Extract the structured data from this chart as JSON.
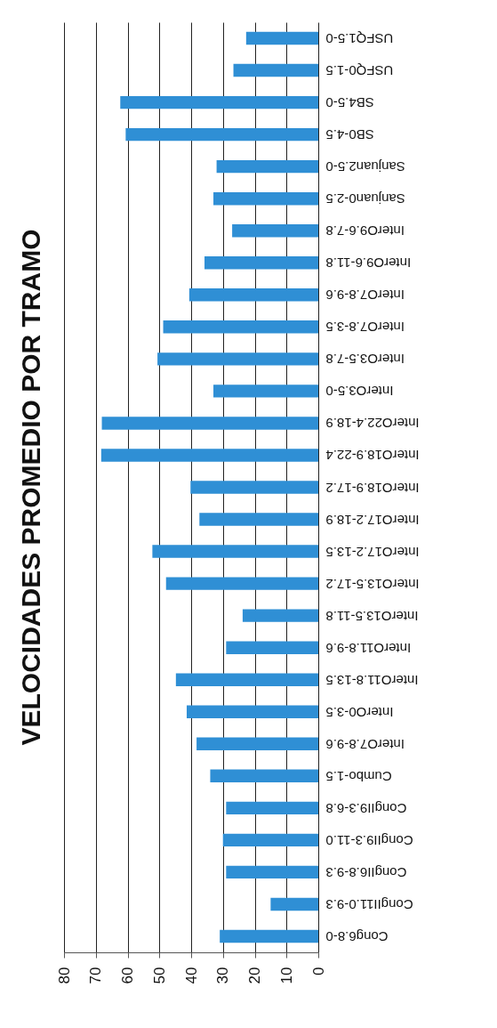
{
  "chart_data": {
    "type": "bar",
    "orientation": "horizontal",
    "title": "VELOCIDADES PROMEDIO POR TRAMO",
    "categories": [
      "USFQ1.5-0",
      "USFQ0-1.5",
      "SB4.5-0",
      "SB0-4.5",
      "Sanjuan2.5-0",
      "Sanjuan0-2.5",
      "InterO9.6-7.8",
      "InterO9.6-11.8",
      "InterO7.8-9.6",
      "InterO7.8-3.5",
      "InterO3.5-7.8",
      "InterO3.5-0",
      "InterO22.4-18.9",
      "InterO18.9-22.4",
      "InterO18.9-17.2",
      "InterO17.2-18.9",
      "InterO17.2-13.5",
      "InterO13.5-17.2",
      "InterO13.5-11.8",
      "InterO11.8-9.6",
      "InterO11.8-13.5",
      "InterO0-3.5",
      "InterO7.8-9.6",
      "Cumbo-1.5",
      "CongII9.3-6.8",
      "CongII9.3-11.0",
      "CongII6.8-9.3",
      "CongII11.0-9.3",
      "Cong6.8-0"
    ],
    "values": [
      22.7,
      26.7,
      62.3,
      60.6,
      32,
      33,
      27.1,
      35.8,
      40.6,
      48.8,
      50.6,
      33,
      68.1,
      68.3,
      40.2,
      37.4,
      52.2,
      47.9,
      23.8,
      29,
      44.8,
      41.4,
      38.3,
      34,
      29,
      30,
      29,
      15,
      31
    ],
    "color": "#2f8fd5",
    "xlim": [
      80,
      0
    ],
    "xticks": [
      80,
      70,
      60,
      50,
      40,
      30,
      20,
      10,
      0
    ],
    "grid": "x"
  }
}
